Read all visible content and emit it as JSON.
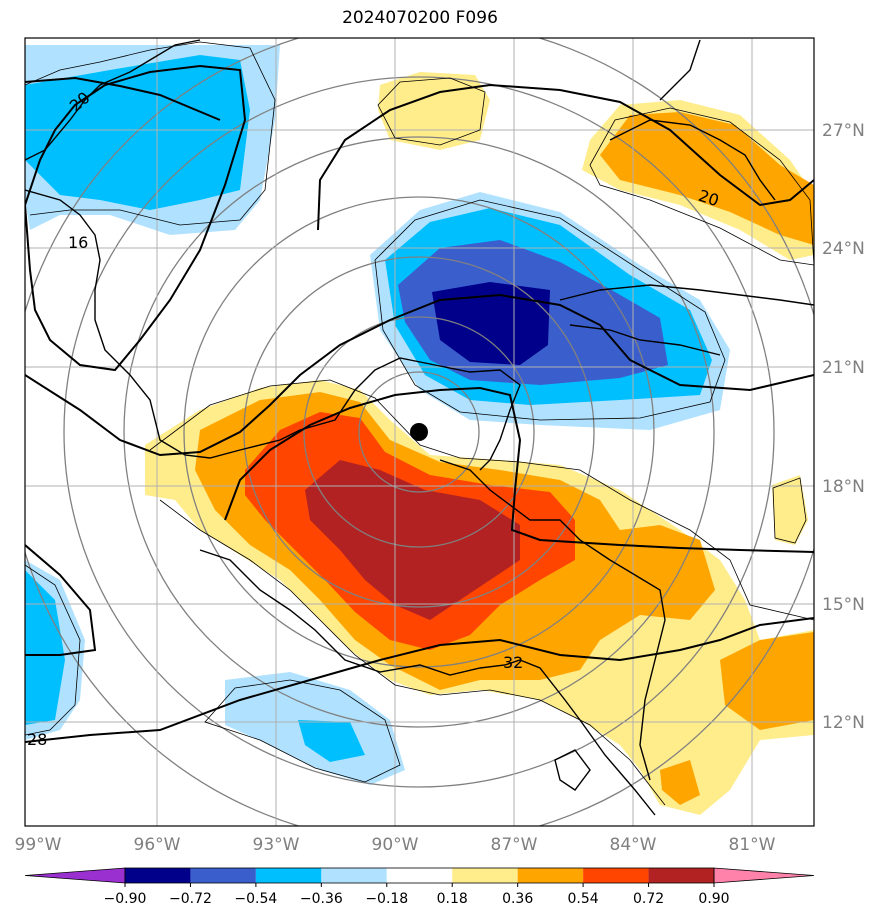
{
  "title": "2024070200 F096",
  "lat_labels": [
    "27°N",
    "24°N",
    "21°N",
    "18°N",
    "15°N",
    "12°N"
  ],
  "lon_labels": [
    "99°W",
    "96°W",
    "93°W",
    "90°W",
    "87°W",
    "84°W",
    "81°W"
  ],
  "colorbar": {
    "ticks": [
      "−0.90",
      "−0.72",
      "−0.54",
      "−0.36",
      "−0.18",
      "0.18",
      "0.36",
      "0.54",
      "0.72",
      "0.90"
    ],
    "colors": [
      "#9b30d0",
      "#00008b",
      "#3a5fcd",
      "#00bfff",
      "#b0e2ff",
      "#ffffff",
      "#ffec8b",
      "#ffa500",
      "#ff4500",
      "#b22222",
      "#ff82ab"
    ]
  },
  "contour_labels": [
    "20",
    "16",
    "20",
    "32",
    "28"
  ],
  "center_marker": "storm-center"
}
